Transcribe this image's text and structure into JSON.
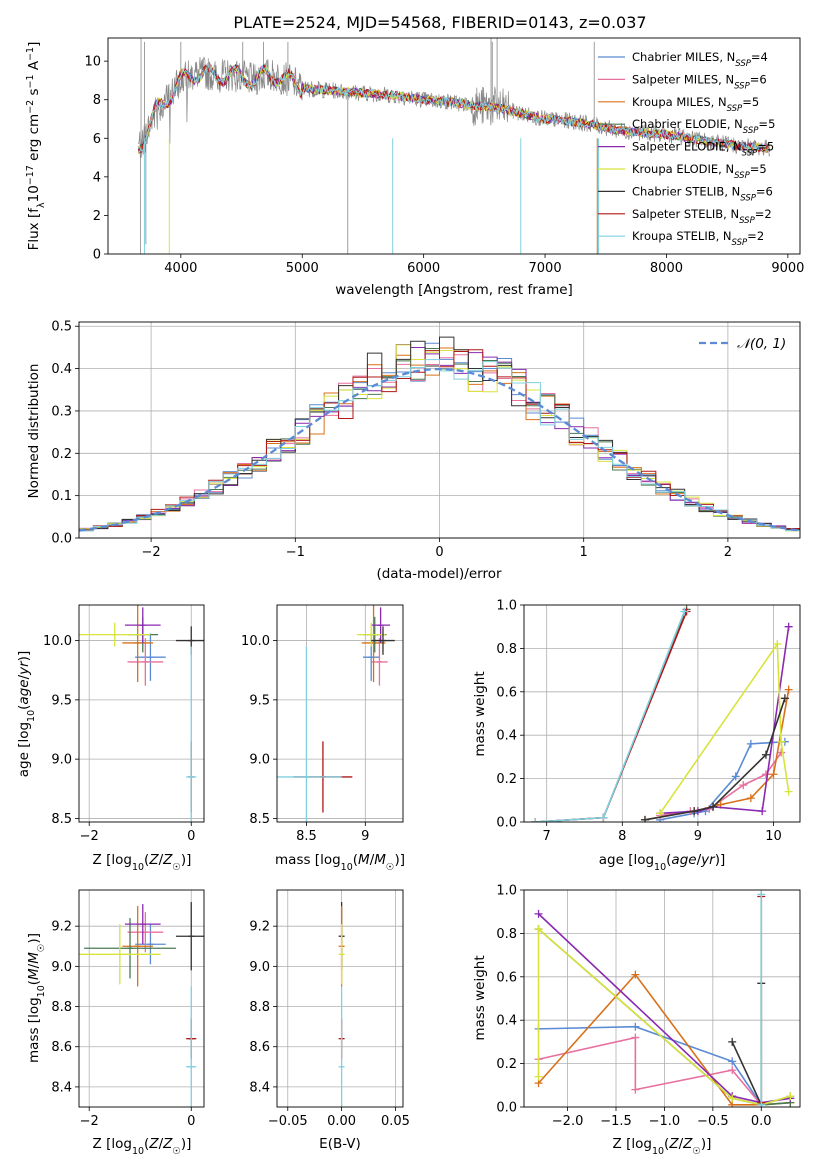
{
  "figure_title": "PLATE=2524, MJD=54568, FIBERID=0143, z=0.037",
  "models": [
    {
      "name": "Chabrier MILES",
      "nssp": "4",
      "color": "#5b8bd4"
    },
    {
      "name": "Salpeter MILES",
      "nssp": "6",
      "color": "#e8709f"
    },
    {
      "name": "Kroupa MILES",
      "nssp": "5",
      "color": "#d9711a"
    },
    {
      "name": "Chabrier ELODIE",
      "nssp": "5",
      "color": "#4a7a52"
    },
    {
      "name": "Salpeter ELODIE",
      "nssp": "5",
      "color": "#8a2ab0"
    },
    {
      "name": "Kroupa ELODIE",
      "nssp": "5",
      "color": "#d8e43c"
    },
    {
      "name": "Chabrier STELIB",
      "nssp": "6",
      "color": "#333333"
    },
    {
      "name": "Salpeter STELIB",
      "nssp": "2",
      "color": "#b0181a"
    },
    {
      "name": "Kroupa STELIB",
      "nssp": "2",
      "color": "#7fd0e0"
    }
  ],
  "chart_data": [
    {
      "id": "spectrum",
      "type": "line",
      "xlabel": "wavelength [Angstrom, rest frame]",
      "ylabel": "Flux [f_λ 10^-17 erg cm^-2 s^-1 A^-1]",
      "xlim": [
        3400,
        9100
      ],
      "ylim": [
        0,
        11.2
      ],
      "xticks": [
        4000,
        5000,
        6000,
        7000,
        8000,
        9000
      ],
      "yticks": [
        0,
        2,
        4,
        6,
        8,
        10
      ],
      "grid": false,
      "legend": "top-right",
      "observed_color": "#888888",
      "continuum_x": [
        3650,
        3700,
        3800,
        3900,
        4000,
        4100,
        4200,
        4300,
        4400,
        4500,
        4600,
        4700,
        4800,
        4900,
        5000,
        5200,
        5400,
        5600,
        5800,
        6000,
        6200,
        6400,
        6600,
        6800,
        7000,
        7200,
        7400,
        7600,
        7800,
        8000,
        8200,
        8400,
        8600,
        8800
      ],
      "continuum_y": [
        5.6,
        6.0,
        7.5,
        8.1,
        9.0,
        9.3,
        9.4,
        9.2,
        9.3,
        9.2,
        9.0,
        9.3,
        9.2,
        9.0,
        8.6,
        8.5,
        8.4,
        8.3,
        8.2,
        8.0,
        7.9,
        7.7,
        7.6,
        7.3,
        7.0,
        6.9,
        6.7,
        6.4,
        6.3,
        6.2,
        6.0,
        5.8,
        5.6,
        5.5
      ]
    },
    {
      "id": "residuals",
      "type": "histogram",
      "xlabel": "(data-model)/error",
      "ylabel": "Normed distribution",
      "xlim": [
        -2.5,
        2.5
      ],
      "ylim": [
        0,
        0.51
      ],
      "xticks": [
        -2,
        -1,
        0,
        1,
        2
      ],
      "yticks": [
        0.0,
        0.1,
        0.2,
        0.3,
        0.4,
        0.5
      ],
      "grid": true,
      "legend": "top-right",
      "reference_curve": "N(0,1)",
      "reference_color": "#5b8bd4",
      "bin_width": 0.1
    },
    {
      "id": "z_age",
      "type": "scatter",
      "xlabel": "Z [log10(Z/Z☉)]",
      "ylabel": "age [log10(age/yr)]",
      "xlim": [
        -2.2,
        0.25
      ],
      "ylim": [
        8.47,
        10.3
      ],
      "xticks": [
        -2,
        0
      ],
      "yticks": [
        8.5,
        9.0,
        9.5,
        10.0
      ],
      "grid": true,
      "points": [
        {
          "model": 0,
          "x": -0.8,
          "xerr": 0.3,
          "y": 9.86,
          "yerr": 0.2
        },
        {
          "model": 1,
          "x": -0.9,
          "xerr": 0.35,
          "y": 9.82,
          "yerr": 0.2
        },
        {
          "model": 2,
          "x": -1.05,
          "xerr": 0.3,
          "y": 9.98,
          "yerr": 0.33
        },
        {
          "model": 3,
          "x": -0.95,
          "xerr": 0.3,
          "y": 10.05,
          "yerr": 0.15
        },
        {
          "model": 4,
          "x": -0.95,
          "xerr": 0.35,
          "y": 10.13,
          "yerr": 0.15
        },
        {
          "model": 5,
          "x": -1.5,
          "xerr": 0.7,
          "y": 10.05,
          "yerr": 0.1
        },
        {
          "model": 6,
          "x": 0.0,
          "xerr": 0.3,
          "y": 10.0,
          "yerr": 0.12
        },
        {
          "model": 7,
          "x": 0.0,
          "xerr": 0.0,
          "y": 8.85,
          "yerr": 0.3
        },
        {
          "model": 8,
          "x": 0.0,
          "xerr": 0.1,
          "y": 8.85,
          "yerr": 1.1
        }
      ]
    },
    {
      "id": "mass_age",
      "type": "scatter",
      "xlabel": "mass [log10(M/M☉)]",
      "ylabel": "",
      "xlim": [
        8.25,
        9.32
      ],
      "ylim": [
        8.47,
        10.3
      ],
      "xticks": [
        8.5,
        9.0
      ],
      "yticks": [
        8.5,
        9.0,
        9.5,
        10.0
      ],
      "grid": true,
      "points": [
        {
          "model": 0,
          "x": 9.05,
          "xerr": 0.07,
          "y": 9.86,
          "yerr": 0.2
        },
        {
          "model": 1,
          "x": 9.12,
          "xerr": 0.07,
          "y": 9.82,
          "yerr": 0.2
        },
        {
          "model": 2,
          "x": 9.07,
          "xerr": 0.1,
          "y": 9.98,
          "yerr": 0.33
        },
        {
          "model": 3,
          "x": 9.08,
          "xerr": 0.1,
          "y": 10.05,
          "yerr": 0.15
        },
        {
          "model": 4,
          "x": 9.13,
          "xerr": 0.08,
          "y": 10.13,
          "yerr": 0.15
        },
        {
          "model": 5,
          "x": 9.05,
          "xerr": 0.12,
          "y": 10.05,
          "yerr": 0.1
        },
        {
          "model": 6,
          "x": 9.15,
          "xerr": 0.1,
          "y": 10.0,
          "yerr": 0.12
        },
        {
          "model": 7,
          "x": 8.64,
          "xerr": 0.25,
          "y": 8.85,
          "yerr": 0.3
        },
        {
          "model": 8,
          "x": 8.5,
          "xerr": 0.3,
          "y": 8.85,
          "yerr": 1.1
        }
      ]
    },
    {
      "id": "age_weight",
      "type": "line",
      "xlabel": "age [log10(age/yr)]",
      "ylabel": "mass weight",
      "xlim": [
        6.7,
        10.35
      ],
      "ylim": [
        0,
        1.0
      ],
      "xticks": [
        7,
        8,
        9,
        10
      ],
      "yticks": [
        0.0,
        0.2,
        0.4,
        0.6,
        0.8,
        1.0
      ],
      "grid": true,
      "series": [
        {
          "model": 0,
          "x": [
            8.5,
            8.95,
            9.1,
            9.5,
            9.7,
            10.15
          ],
          "y": [
            0.01,
            0.04,
            0.05,
            0.21,
            0.36,
            0.37
          ]
        },
        {
          "model": 1,
          "x": [
            8.5,
            8.9,
            9.15,
            9.6,
            9.9,
            10.1
          ],
          "y": [
            0.03,
            0.05,
            0.06,
            0.17,
            0.22,
            0.32
          ]
        },
        {
          "model": 2,
          "x": [
            8.3,
            8.95,
            9.3,
            9.7,
            10.0,
            10.2
          ],
          "y": [
            0.01,
            0.05,
            0.08,
            0.11,
            0.22,
            0.61
          ]
        },
        {
          "model": 3,
          "x": [
            6.85,
            7.75,
            8.85
          ],
          "y": [
            0.0,
            0.02,
            0.98
          ]
        },
        {
          "model": 4,
          "x": [
            8.5,
            9.0,
            9.2,
            9.85,
            10.2
          ],
          "y": [
            0.04,
            0.05,
            0.07,
            0.05,
            0.9
          ]
        },
        {
          "model": 5,
          "x": [
            8.5,
            10.05,
            10.1,
            10.2
          ],
          "y": [
            0.04,
            0.82,
            0.37,
            0.14
          ]
        },
        {
          "model": 6,
          "x": [
            8.3,
            8.95,
            9.2,
            9.9,
            10.15
          ],
          "y": [
            0.01,
            0.05,
            0.07,
            0.31,
            0.57
          ]
        },
        {
          "model": 7,
          "x": [
            6.85,
            7.75,
            8.85
          ],
          "y": [
            0.0,
            0.02,
            0.97
          ]
        },
        {
          "model": 8,
          "x": [
            6.85,
            7.75,
            8.82
          ],
          "y": [
            0.0,
            0.02,
            0.97
          ]
        }
      ]
    },
    {
      "id": "z_mass",
      "type": "scatter",
      "xlabel": "Z [log10(Z/Z☉)]",
      "ylabel": "mass [log10(M/M☉)]",
      "xlim": [
        -2.2,
        0.25
      ],
      "ylim": [
        8.3,
        9.38
      ],
      "xticks": [
        -2,
        0
      ],
      "yticks": [
        8.4,
        8.6,
        8.8,
        9.0,
        9.2
      ],
      "grid": true,
      "points": [
        {
          "model": 0,
          "x": -0.8,
          "xerr": 0.3,
          "y": 9.11,
          "yerr": 0.1
        },
        {
          "model": 1,
          "x": -0.9,
          "xerr": 0.35,
          "y": 9.17,
          "yerr": 0.1
        },
        {
          "model": 2,
          "x": -1.05,
          "xerr": 0.3,
          "y": 9.1,
          "yerr": 0.2
        },
        {
          "model": 3,
          "x": -1.2,
          "xerr": 0.9,
          "y": 9.09,
          "yerr": 0.15
        },
        {
          "model": 4,
          "x": -0.95,
          "xerr": 0.35,
          "y": 9.21,
          "yerr": 0.1
        },
        {
          "model": 5,
          "x": -1.4,
          "xerr": 0.8,
          "y": 9.06,
          "yerr": 0.15
        },
        {
          "model": 6,
          "x": 0.0,
          "xerr": 0.3,
          "y": 9.15,
          "yerr": 0.17
        },
        {
          "model": 7,
          "x": 0.0,
          "xerr": 0.1,
          "y": 8.64,
          "yerr": 0.1
        },
        {
          "model": 8,
          "x": 0.0,
          "xerr": 0.1,
          "y": 8.5,
          "yerr": 0.4
        }
      ]
    },
    {
      "id": "ebv_mass",
      "type": "scatter",
      "xlabel": "E(B-V)",
      "ylabel": "",
      "xlim": [
        -0.06,
        0.057
      ],
      "ylim": [
        8.3,
        9.38
      ],
      "xticks": [
        -0.05,
        0.0,
        0.05
      ],
      "yticks": [
        8.4,
        8.6,
        8.8,
        9.0,
        9.2
      ],
      "grid": true,
      "points": [
        {
          "model": 6,
          "x": 0.0,
          "y": 9.15,
          "yerr": 0.17
        },
        {
          "model": 2,
          "x": 0.0,
          "y": 9.1,
          "yerr": 0.2
        },
        {
          "model": 5,
          "x": 0.0,
          "y": 9.06,
          "yerr": 0.15
        },
        {
          "model": 7,
          "x": 0.0,
          "y": 8.64,
          "yerr": 0.1
        },
        {
          "model": 8,
          "x": 0.0,
          "y": 8.5,
          "yerr": 0.4
        }
      ]
    },
    {
      "id": "z_weight",
      "type": "line",
      "xlabel": "Z [log10(Z/Z☉)]",
      "ylabel": "mass weight",
      "xlim": [
        -2.45,
        0.4
      ],
      "ylim": [
        0,
        1.0
      ],
      "xticks": [
        -2.0,
        -1.5,
        -1.0,
        -0.5,
        0.0
      ],
      "yticks": [
        0.0,
        0.2,
        0.4,
        0.6,
        0.8,
        1.0
      ],
      "grid": true,
      "series": [
        {
          "model": 0,
          "x": [
            -2.3,
            -1.3,
            -0.3,
            0.0,
            0.3
          ],
          "y": [
            0.36,
            0.37,
            0.21,
            0.01,
            0.05
          ]
        },
        {
          "model": 1,
          "x": [
            -2.3,
            -1.3,
            -1.3,
            -0.3,
            0.0
          ],
          "y": [
            0.22,
            0.32,
            0.08,
            0.17,
            0.01
          ]
        },
        {
          "model": 2,
          "x": [
            -2.3,
            -1.3,
            -0.3,
            0.0,
            0.3
          ],
          "y": [
            0.11,
            0.61,
            0.01,
            0.01,
            0.02
          ]
        },
        {
          "model": 3,
          "x": [
            -2.3,
            -0.3,
            0.0,
            0.0,
            0.3
          ],
          "y": [
            0.82,
            0.04,
            0.01,
            0.01,
            0.02
          ]
        },
        {
          "model": 4,
          "x": [
            -2.3,
            -0.3,
            0.0,
            0.3
          ],
          "y": [
            0.89,
            0.05,
            0.02,
            0.04
          ]
        },
        {
          "model": 5,
          "x": [
            -2.3,
            -2.3,
            -0.3,
            0.0,
            0.3
          ],
          "y": [
            0.14,
            0.82,
            0.04,
            0.01,
            0.05
          ]
        },
        {
          "model": 6,
          "x": [
            -0.3,
            0.0,
            0.0
          ],
          "y": [
            0.3,
            0.01,
            0.57
          ]
        },
        {
          "model": 7,
          "x": [
            0.0,
            0.0
          ],
          "y": [
            0.02,
            0.97
          ]
        },
        {
          "model": 8,
          "x": [
            0.0,
            0.0
          ],
          "y": [
            0.01,
            0.98
          ]
        }
      ]
    }
  ]
}
